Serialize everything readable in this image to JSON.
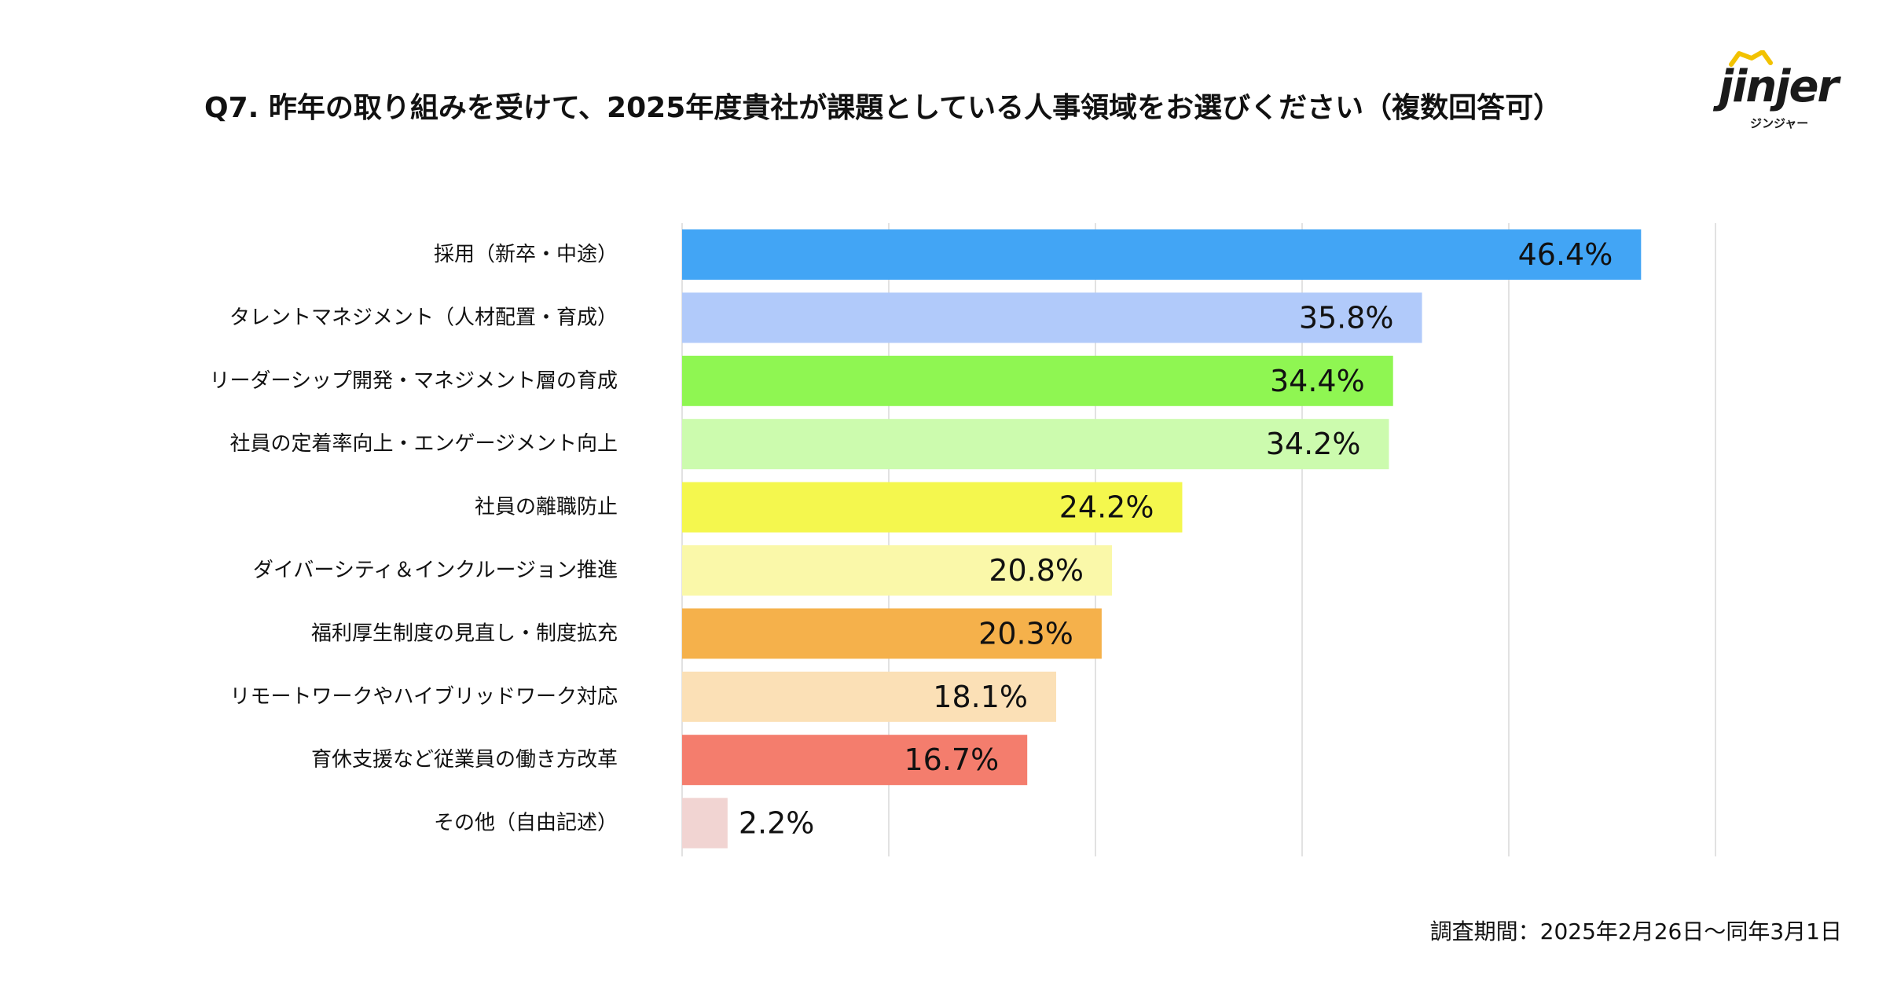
{
  "title": "Q7. 昨年の取り組みを受けて、2025年度貴社が課題としている人事領域をお選びください（複数回答可）",
  "logo": {
    "word": "jinjer",
    "sub": "ジンジャー"
  },
  "footnote": "調査期間：2025年2月26日〜同年3月1日",
  "chart_data": {
    "type": "bar",
    "orientation": "horizontal",
    "grid": true,
    "categories": [
      "採用（新卒・中途）",
      "タレントマネジメント（人材配置・育成）",
      "リーダーシップ開発・マネジメント層の育成",
      "社員の定着率向上・エンゲージメント向上",
      "社員の離職防止",
      "ダイバーシティ＆インクルージョン推進",
      "福利厚生制度の見直し・制度拡充",
      "リモートワークやハイブリッドワーク対応",
      "育休支援など従業員の働き方改革",
      "その他（自由記述）"
    ],
    "values": [
      46.4,
      35.8,
      34.4,
      34.2,
      24.2,
      20.8,
      20.3,
      18.1,
      16.7,
      2.2
    ],
    "labels": [
      "46.4%",
      "35.8%",
      "34.4%",
      "34.2%",
      "24.2%",
      "20.8%",
      "20.3%",
      "18.1%",
      "16.7%",
      "2.2%"
    ],
    "colors": [
      "#42A5F5",
      "#B1CAFA",
      "#8FF652",
      "#CCFBAE",
      "#F4F74E",
      "#FAF8A9",
      "#F5B14B",
      "#FBE0B6",
      "#F47D6D",
      "#F1D4D2"
    ],
    "xlim": [
      0,
      50
    ]
  }
}
